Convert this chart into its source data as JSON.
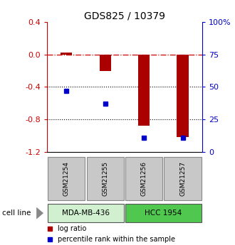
{
  "title": "GDS825 / 10379",
  "samples": [
    "GSM21254",
    "GSM21255",
    "GSM21256",
    "GSM21257"
  ],
  "log_ratio": [
    0.02,
    -0.2,
    -0.88,
    -1.02
  ],
  "percentile_rank": [
    47,
    37,
    11,
    11
  ],
  "ylim_left": [
    -1.2,
    0.4
  ],
  "ylim_right": [
    0,
    100
  ],
  "yticks_left": [
    0.4,
    0.0,
    -0.4,
    -0.8,
    -1.2
  ],
  "yticks_right": [
    100,
    75,
    50,
    25,
    0
  ],
  "cell_lines": [
    {
      "label": "MDA-MB-436",
      "samples": [
        0,
        1
      ],
      "color": "#d0f0d0"
    },
    {
      "label": "HCC 1954",
      "samples": [
        2,
        3
      ],
      "color": "#50c850"
    }
  ],
  "bar_color": "#aa0000",
  "dot_color": "#0000cc",
  "hline_color": "#cc0000",
  "dotted_line_color": "#000000",
  "gsm_box_color": "#c8c8c8",
  "title_color": "#000000",
  "left_axis_color": "#cc0000",
  "right_axis_color": "#0000cc",
  "bar_width": 0.3
}
